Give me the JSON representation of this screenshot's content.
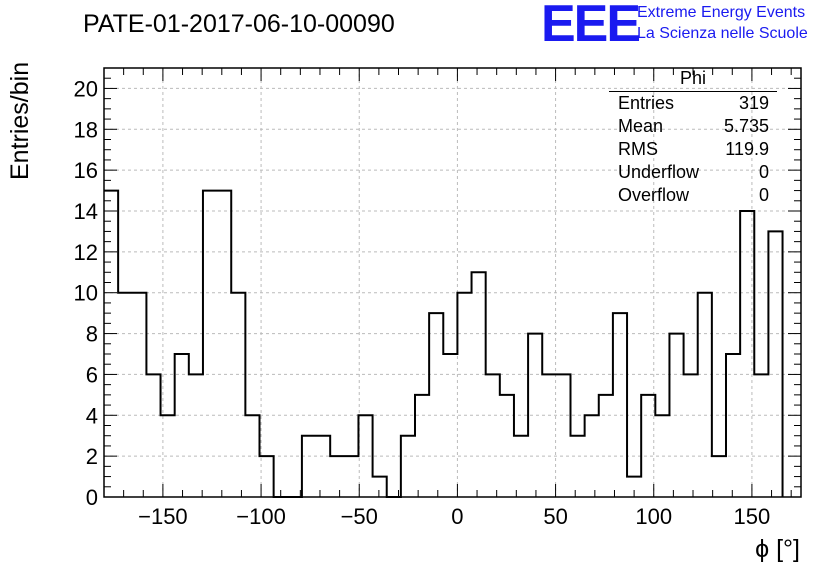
{
  "title": "PATE-01-2017-06-10-00090",
  "logo": {
    "mark": "EEE",
    "line1": "Extreme Energy Events",
    "line2": "La Scienza nelle Scuole",
    "color": "#1a1af0"
  },
  "stats_box": {
    "title": "Phi",
    "rows": [
      {
        "label": "Entries",
        "value": "319"
      },
      {
        "label": "Mean",
        "value": "5.735"
      },
      {
        "label": "RMS",
        "value": "119.9"
      },
      {
        "label": "Underflow",
        "value": "0"
      },
      {
        "label": "Overflow",
        "value": "0"
      }
    ]
  },
  "chart_data": {
    "type": "bar",
    "histogram": true,
    "title": "PATE-01-2017-06-10-00090",
    "xlabel": "ϕ [°]",
    "ylabel": "Entries/bin",
    "xlim": [
      -180,
      175
    ],
    "ylim": [
      0,
      21
    ],
    "bin_width": 7.2,
    "bin_edges_start": -180,
    "values": [
      15,
      10,
      10,
      6,
      4,
      7,
      6,
      15,
      15,
      10,
      4,
      2,
      0,
      0,
      3,
      3,
      2,
      2,
      4,
      1,
      0,
      3,
      5,
      9,
      7,
      10,
      11,
      6,
      5,
      3,
      8,
      6,
      6,
      3,
      4,
      5,
      9,
      1,
      5,
      4,
      8,
      6,
      10,
      2,
      7,
      14,
      6,
      13
    ],
    "xticks": [
      -150,
      -100,
      -50,
      0,
      50,
      100,
      150
    ],
    "xtick_labels": [
      "−150",
      "−100",
      "−50",
      "0",
      "50",
      "100",
      "150"
    ],
    "yticks": [
      0,
      2,
      4,
      6,
      8,
      10,
      12,
      14,
      16,
      18,
      20
    ],
    "ytick_labels": [
      "0",
      "2",
      "4",
      "6",
      "8",
      "10",
      "12",
      "14",
      "16",
      "18",
      "20"
    ],
    "grid": true,
    "line_color": "#000000",
    "grid_color": "#bbbbbb"
  }
}
